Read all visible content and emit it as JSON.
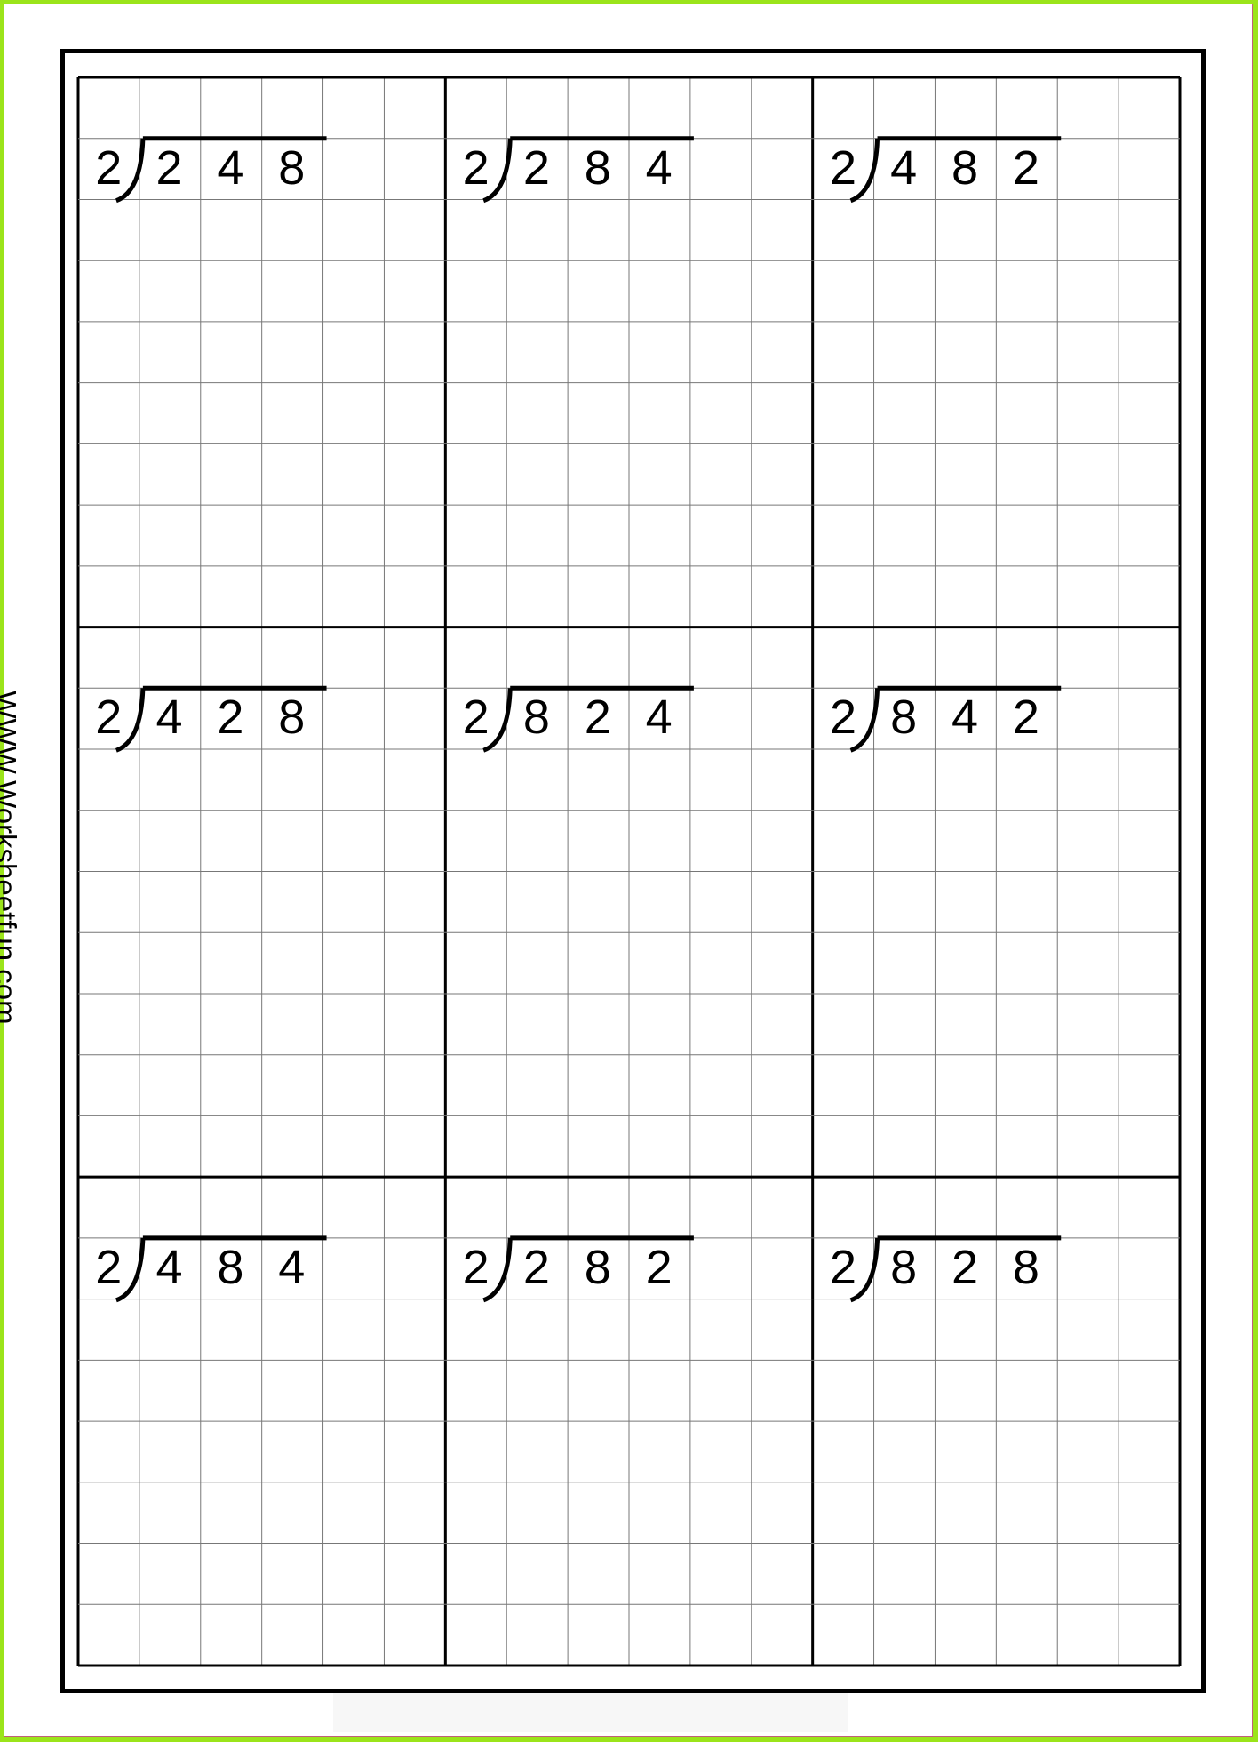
{
  "watermark": "WWW.Worksheetfun.com",
  "colors": {
    "border": "#9be41a",
    "grid_line": "#777777",
    "major_line": "#000000"
  },
  "problems": [
    {
      "divisor": "2",
      "dividend": [
        "2",
        "4",
        "8"
      ]
    },
    {
      "divisor": "2",
      "dividend": [
        "2",
        "8",
        "4"
      ]
    },
    {
      "divisor": "2",
      "dividend": [
        "4",
        "8",
        "2"
      ]
    },
    {
      "divisor": "2",
      "dividend": [
        "4",
        "2",
        "8"
      ]
    },
    {
      "divisor": "2",
      "dividend": [
        "8",
        "2",
        "4"
      ]
    },
    {
      "divisor": "2",
      "dividend": [
        "8",
        "4",
        "2"
      ]
    },
    {
      "divisor": "2",
      "dividend": [
        "4",
        "8",
        "4"
      ]
    },
    {
      "divisor": "2",
      "dividend": [
        "2",
        "8",
        "2"
      ]
    },
    {
      "divisor": "2",
      "dividend": [
        "8",
        "2",
        "8"
      ]
    }
  ]
}
